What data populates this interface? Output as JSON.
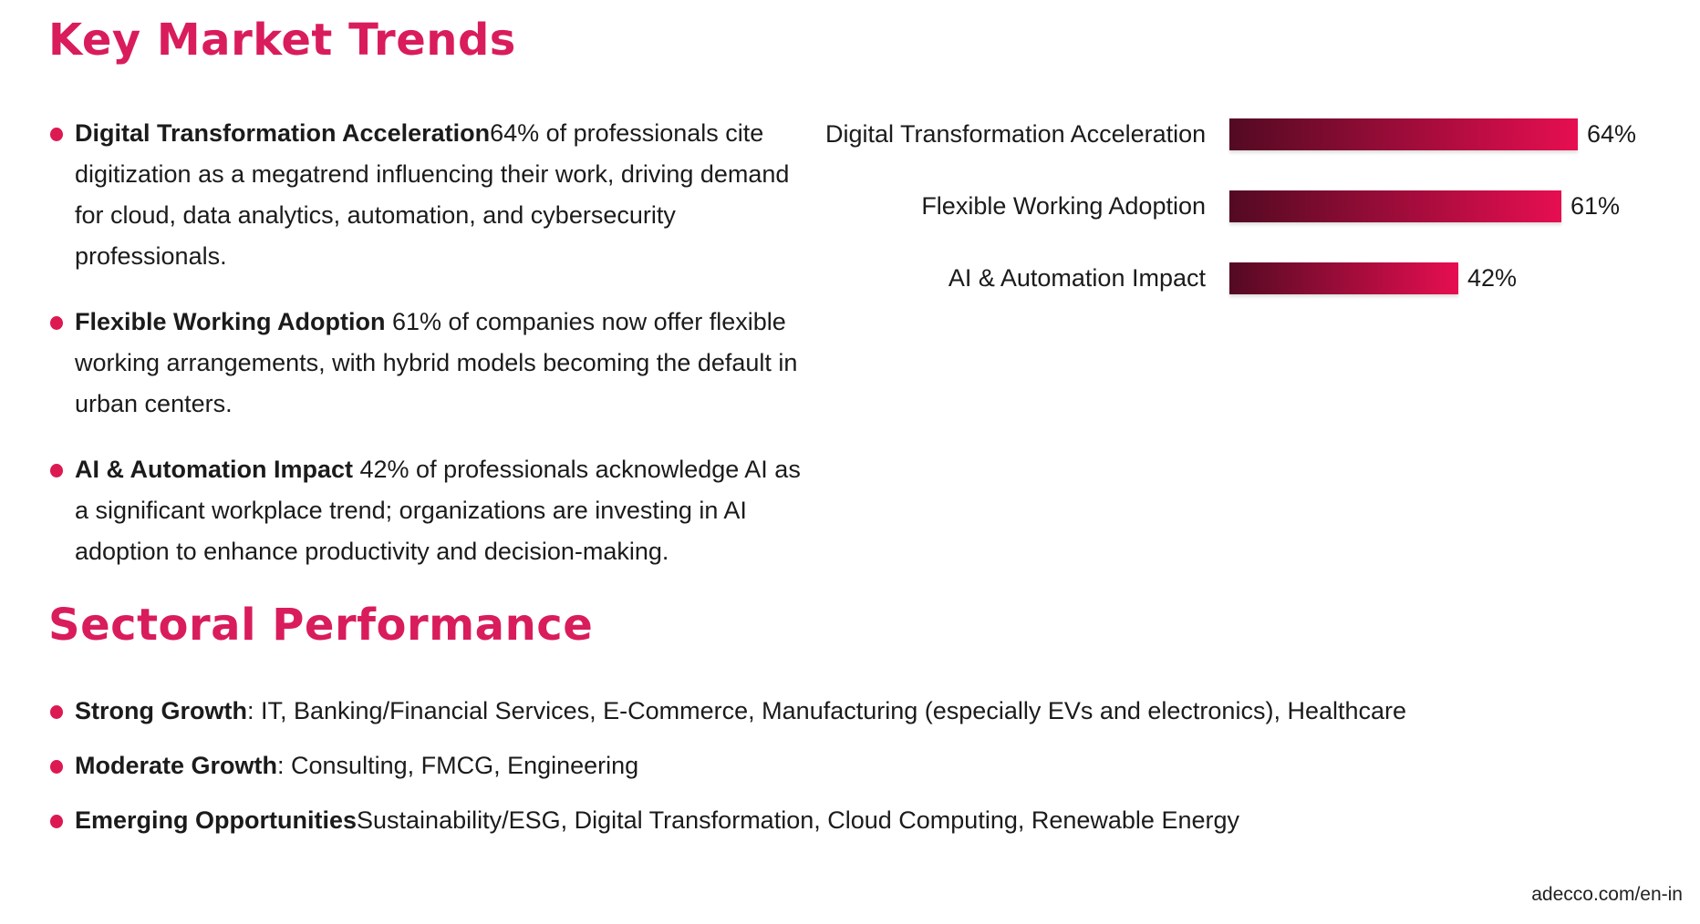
{
  "colors": {
    "accent": "#D91C5C",
    "bullet_dot": "#DC1951",
    "bar_gradient_start": "#530A22",
    "bar_gradient_end": "#E60E51",
    "body_text": "#1B1B1B"
  },
  "key_market_trends": {
    "title": "Key Market Trends",
    "bullets": [
      {
        "bold": "Digital Transformation Acceleration",
        "rest": "64% of professionals cite digitization as a megatrend influencing their work, driving demand for cloud, data analytics, automation, and cybersecurity professionals."
      },
      {
        "bold": "Flexible Working Adoption",
        "rest": " 61% of companies now offer flexible working arrangements, with hybrid models becoming the default in urban centers."
      },
      {
        "bold": "AI & Automation Impact",
        "rest": " 42% of professionals acknowledge AI as a significant workplace trend; organizations are investing in AI adoption to enhance productivity and decision-making."
      }
    ]
  },
  "chart_data": {
    "type": "bar",
    "orientation": "horizontal",
    "title": "",
    "xlabel": "",
    "ylabel": "",
    "grid": false,
    "legend": "none",
    "categories": [
      "Digital Transformation Acceleration",
      "Flexible Working Adoption",
      "AI & Automation Impact"
    ],
    "values": [
      64,
      61,
      42
    ],
    "value_labels": [
      "64%",
      "61%",
      "42%"
    ],
    "xlim": [
      0,
      100
    ],
    "bar_gradient": [
      "#530A22",
      "#E60E51"
    ]
  },
  "sectoral_performance": {
    "title": "Sectoral Performance",
    "bullets": [
      {
        "bold": "Strong Growth",
        "rest": ": IT, Banking/Financial Services, E-Commerce, Manufacturing (especially EVs and electronics), Healthcare"
      },
      {
        "bold": "Moderate Growth",
        "rest": ": Consulting, FMCG, Engineering"
      },
      {
        "bold": "Emerging Opportunities",
        "rest": "Sustainability/ESG, Digital Transformation, Cloud Computing, Renewable Energy"
      }
    ]
  },
  "footer": {
    "url": "adecco.com/en-in"
  }
}
